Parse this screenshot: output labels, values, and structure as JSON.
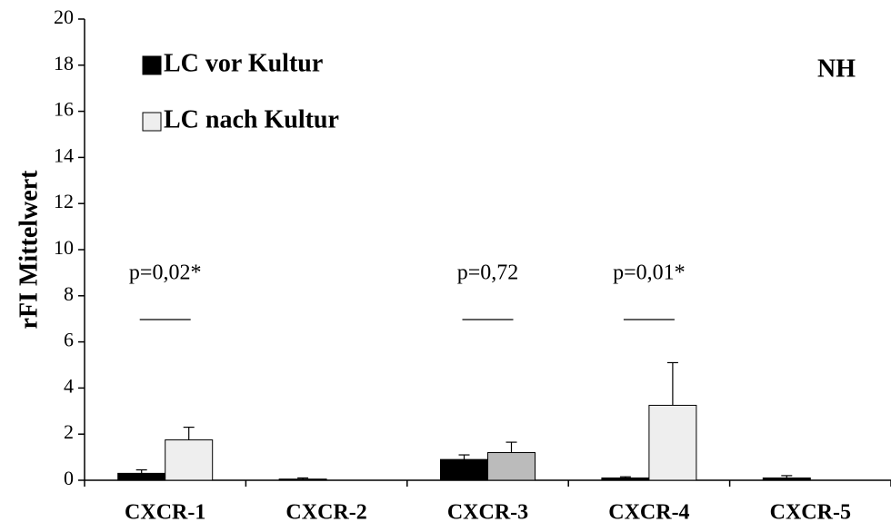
{
  "chart_data": {
    "type": "bar",
    "ylabel": "rFI Mittelwert",
    "categories": [
      "CXCR-1",
      "CXCR-2",
      "CXCR-3",
      "CXCR-4",
      "CXCR-5"
    ],
    "series": [
      {
        "name": "LC vor Kultur",
        "color": "#000000",
        "values": [
          0.3,
          0.05,
          0.9,
          0.1,
          0.1
        ],
        "errors": [
          0.15,
          0.05,
          0.2,
          0.05,
          0.1
        ]
      },
      {
        "name": "LC nach Kultur",
        "color": "#eeeeee",
        "colors": [
          "#eeeeee",
          "#eeeeee",
          "#bbbbbb",
          "#eeeeee",
          "#eeeeee"
        ],
        "values": [
          1.75,
          0,
          1.2,
          3.25,
          0
        ],
        "errors": [
          0.55,
          null,
          0.45,
          1.85,
          null
        ]
      }
    ],
    "ylim": [
      0,
      20
    ],
    "yticks": [
      0,
      2,
      4,
      6,
      8,
      10,
      12,
      14,
      16,
      18,
      20
    ],
    "annotations": [
      {
        "text": "p=0,02*",
        "category": "CXCR-1"
      },
      {
        "text": "p=0,72",
        "category": "CXCR-3"
      },
      {
        "text": "p=0,01*",
        "category": "CXCR-4"
      }
    ],
    "corner_label": "NH"
  }
}
